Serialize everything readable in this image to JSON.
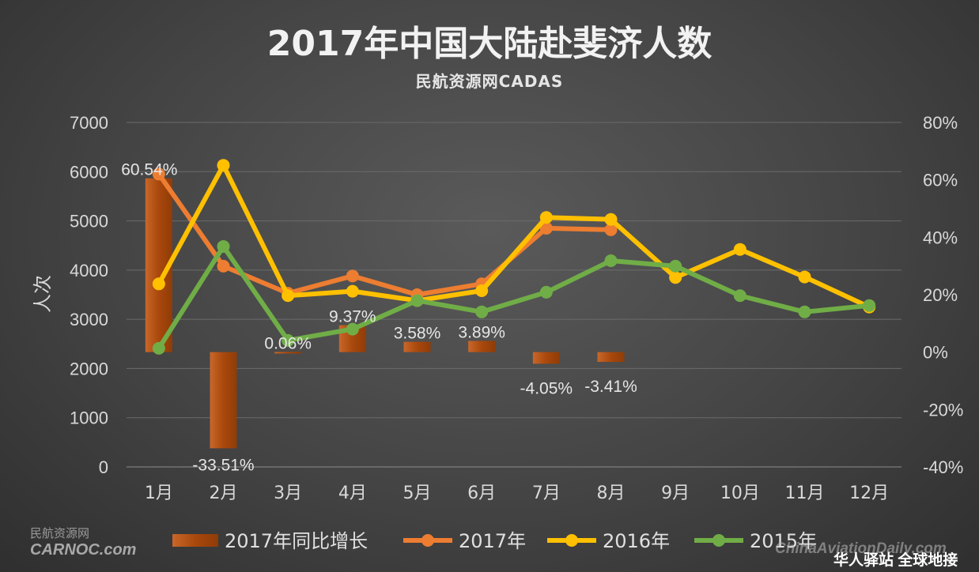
{
  "chart_data": {
    "type": "bar",
    "title": "2017年中国大陆赴斐济人数",
    "subtitle": "民航资源网CADAS",
    "ylabel": "人次",
    "categories": [
      "1月",
      "2月",
      "3月",
      "4月",
      "5月",
      "6月",
      "7月",
      "8月",
      "9月",
      "10月",
      "11月",
      "12月"
    ],
    "y_left": {
      "min": 0,
      "max": 7000,
      "ticks": [
        "0",
        "1000",
        "2000",
        "3000",
        "4000",
        "5000",
        "6000",
        "7000"
      ]
    },
    "y_right": {
      "min": -40,
      "max": 80,
      "ticks": [
        "-40%",
        "-20%",
        "0%",
        "20%",
        "40%",
        "60%",
        "80%"
      ]
    },
    "grid": true,
    "legend_position": "bottom",
    "series": [
      {
        "name": "2017年同比增长",
        "type": "bar",
        "axis": "right",
        "color": "#b5520e",
        "values": [
          60.54,
          -33.51,
          0.06,
          9.37,
          3.58,
          3.89,
          -4.05,
          -3.41,
          null,
          null,
          null,
          null
        ],
        "labels": [
          "60.54%",
          "-33.51%",
          "0.06%",
          "9.37%",
          "3.58%",
          "3.89%",
          "-4.05%",
          "-3.41%",
          "",
          "",
          "",
          ""
        ]
      },
      {
        "name": "2017年",
        "type": "line",
        "axis": "left",
        "color": "#ed7d31",
        "values": [
          5950,
          4080,
          3530,
          3880,
          3500,
          3720,
          4850,
          4820,
          null,
          null,
          null,
          null
        ]
      },
      {
        "name": "2016年",
        "type": "line",
        "axis": "left",
        "color": "#ffc000",
        "values": [
          3720,
          6130,
          3480,
          3570,
          3380,
          3580,
          5070,
          5030,
          3850,
          4420,
          3860,
          3250
        ]
      },
      {
        "name": "2015年",
        "type": "line",
        "axis": "left",
        "color": "#70ad47",
        "values": [
          2410,
          4480,
          2570,
          2800,
          3380,
          3150,
          3550,
          4190,
          4080,
          3480,
          3150,
          3280
        ]
      }
    ]
  },
  "watermarks": {
    "carnoc_cn": "民航资源网",
    "carnoc_en": "CARNOC.com",
    "cad": "ChinaAviationDaily.com",
    "station": "华人驿站 全球地接"
  }
}
